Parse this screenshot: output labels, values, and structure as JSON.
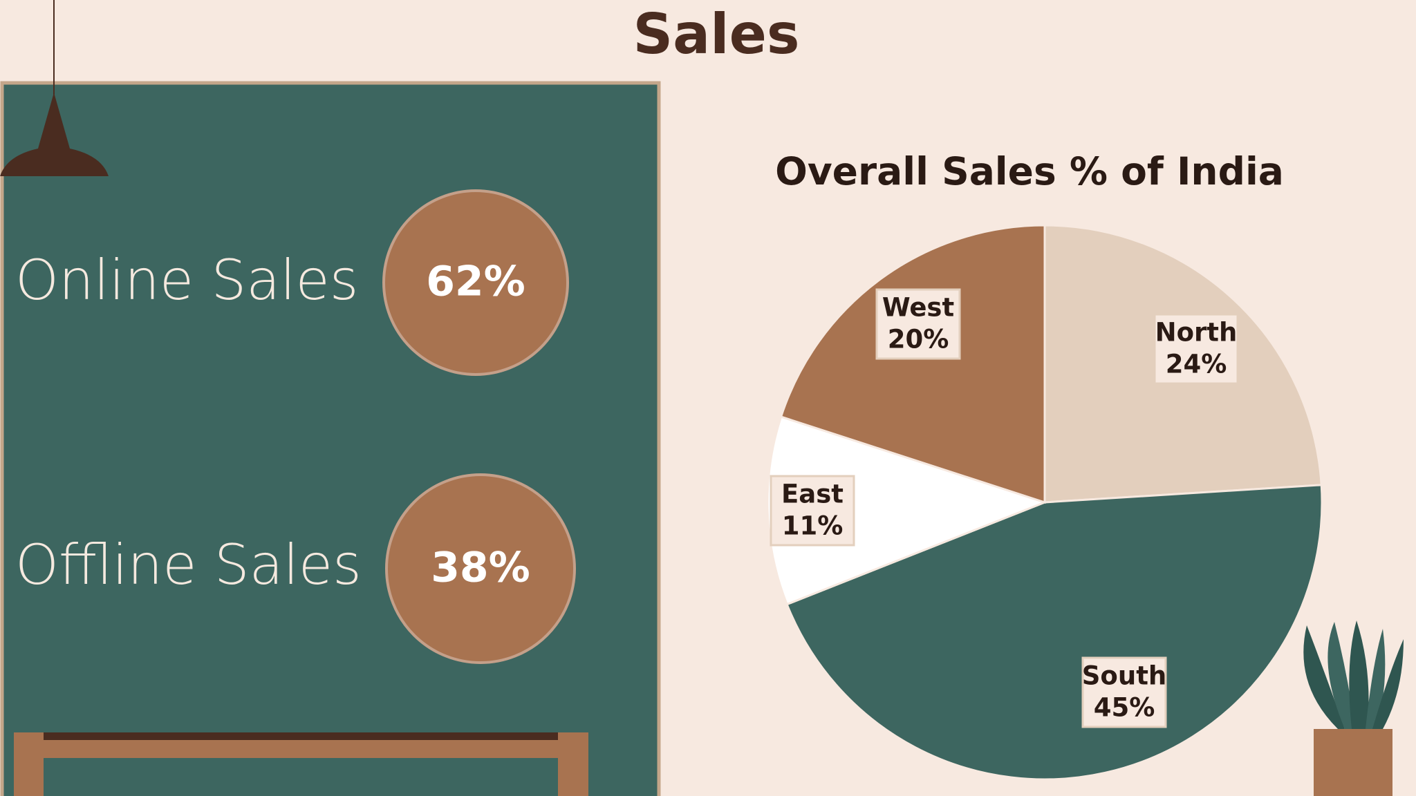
{
  "title": "Sales",
  "stats": [
    {
      "label": "Online Sales",
      "value": "62%"
    },
    {
      "label": "Offline Sales",
      "value": "38%"
    }
  ],
  "chart_data": {
    "type": "pie",
    "title": "Overall Sales % of India",
    "categories": [
      "North",
      "South",
      "East",
      "West"
    ],
    "values": [
      24,
      45,
      11,
      20
    ],
    "value_labels": [
      "24%",
      "45%",
      "11%",
      "20%"
    ],
    "colors": [
      "#e3cfbd",
      "#3d6660",
      "#ffffff",
      "#a87350"
    ]
  }
}
